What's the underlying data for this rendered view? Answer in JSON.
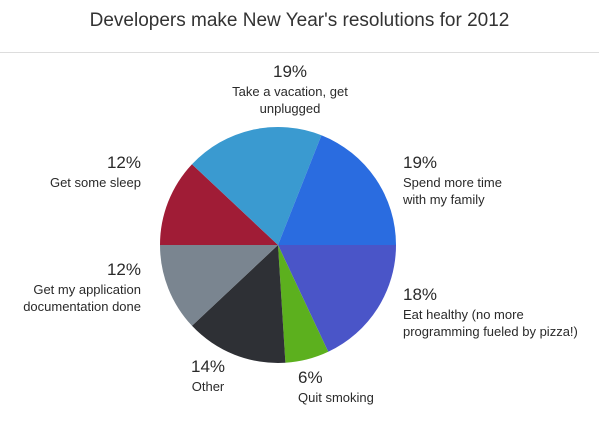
{
  "chart_data": {
    "type": "pie",
    "title": "Developers make New Year's resolutions for 2012",
    "categories": [
      "Eat healthy (no more programming fueled by pizza!)",
      "Quit smoking",
      "Other",
      "Get my application documentation done",
      "Get some sleep",
      "Take a vacation, get unplugged",
      "Spend more time with my family"
    ],
    "values": [
      18,
      6,
      14,
      12,
      12,
      19,
      19
    ],
    "value_labels": [
      "18%",
      "6%",
      "14%",
      "12%",
      "12%",
      "19%",
      "19%"
    ],
    "colors": [
      "#4a55c8",
      "#5cb01e",
      "#2e3035",
      "#7a8590",
      "#a01c36",
      "#3a9ad0",
      "#2a6ce0"
    ]
  }
}
